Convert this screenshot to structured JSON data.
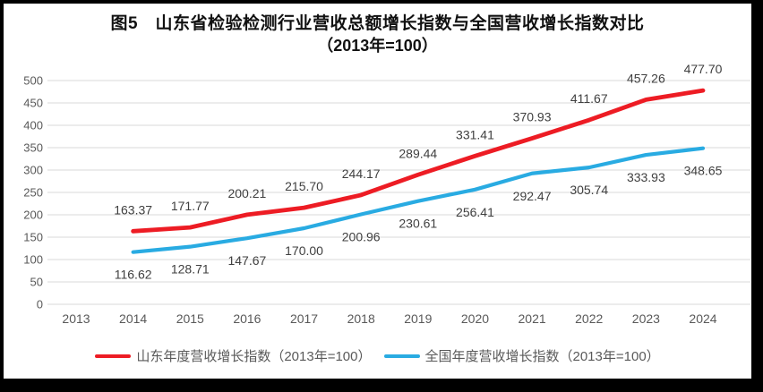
{
  "title": {
    "line1": "图5　山东省检验检测行业营收总额增长指数与全国营收增长指数对比",
    "line2": "（2013年=100）"
  },
  "chart_data": {
    "type": "line",
    "categories": [
      "2013",
      "2014",
      "2015",
      "2016",
      "2017",
      "2018",
      "2019",
      "2020",
      "2021",
      "2022",
      "2023",
      "2024"
    ],
    "series": [
      {
        "name": "山东年度营收增长指数（2013年=100）",
        "color": "#ED1C24",
        "label_position": "above",
        "values": [
          null,
          163.37,
          171.77,
          200.21,
          215.7,
          244.17,
          289.44,
          331.41,
          370.93,
          411.67,
          457.26,
          477.7
        ]
      },
      {
        "name": "全国年度营收增长指数（2013年=100）",
        "color": "#29ABE2",
        "label_position": "below",
        "values": [
          null,
          116.62,
          128.71,
          147.67,
          170.0,
          200.96,
          230.61,
          256.41,
          292.47,
          305.74,
          333.93,
          348.65
        ]
      }
    ],
    "ylim": [
      0,
      500
    ],
    "yticks": [
      0,
      50,
      100,
      150,
      200,
      250,
      300,
      350,
      400,
      450,
      500
    ],
    "grid": true,
    "legend_position": "bottom",
    "data_label_decimals": 2,
    "xlabel": "",
    "ylabel": ""
  },
  "legend": {
    "items": [
      {
        "label": "山东年度营收增长指数（2013年=100）",
        "color": "#ED1C24"
      },
      {
        "label": "全国年度营收增长指数（2013年=100）",
        "color": "#29ABE2"
      }
    ]
  },
  "colors": {
    "grid": "#D9D9D9",
    "axis_text": "#595959",
    "data_label": "#3F3F3F",
    "frame": "#000000",
    "panel": "#FFFFFF"
  }
}
